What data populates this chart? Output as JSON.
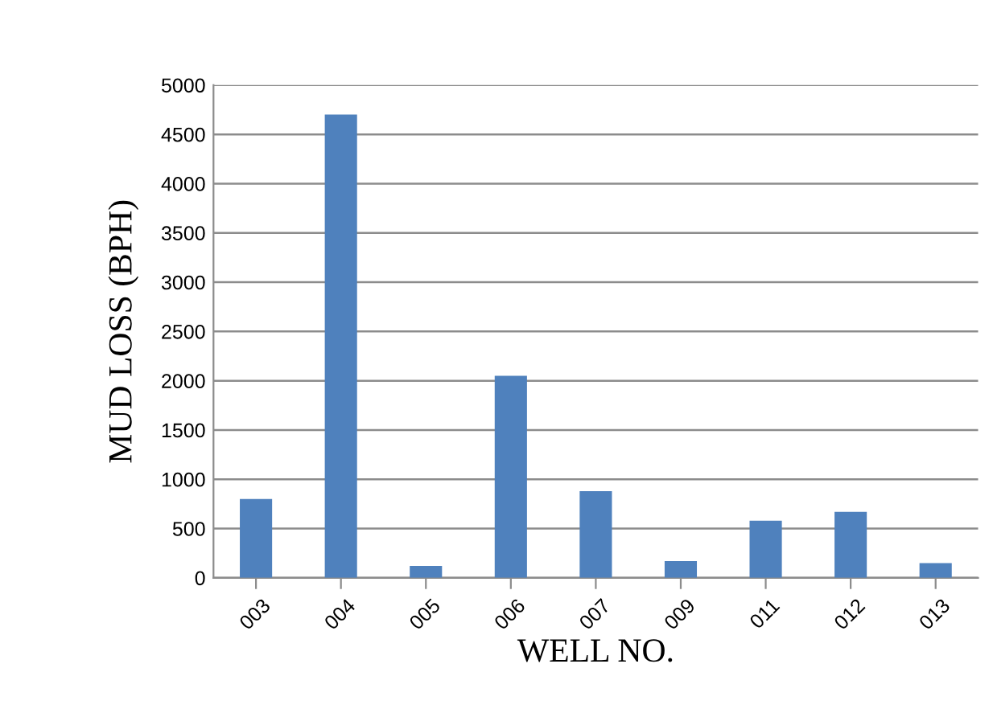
{
  "chart_data": {
    "type": "bar",
    "xlabel": "WELL NO.",
    "ylabel": "MUD LOSS (BPH)",
    "categories": [
      "003",
      "004",
      "005",
      "006",
      "007",
      "009",
      "011",
      "012",
      "013"
    ],
    "values": [
      800,
      4700,
      120,
      2050,
      880,
      170,
      580,
      670,
      150
    ],
    "color": "#4f81bd",
    "ylim": [
      0,
      5000
    ],
    "yticks": [
      0,
      500,
      1000,
      1500,
      2000,
      2500,
      3000,
      3500,
      4000,
      4500,
      5000
    ],
    "grid": "y",
    "legend": false
  }
}
